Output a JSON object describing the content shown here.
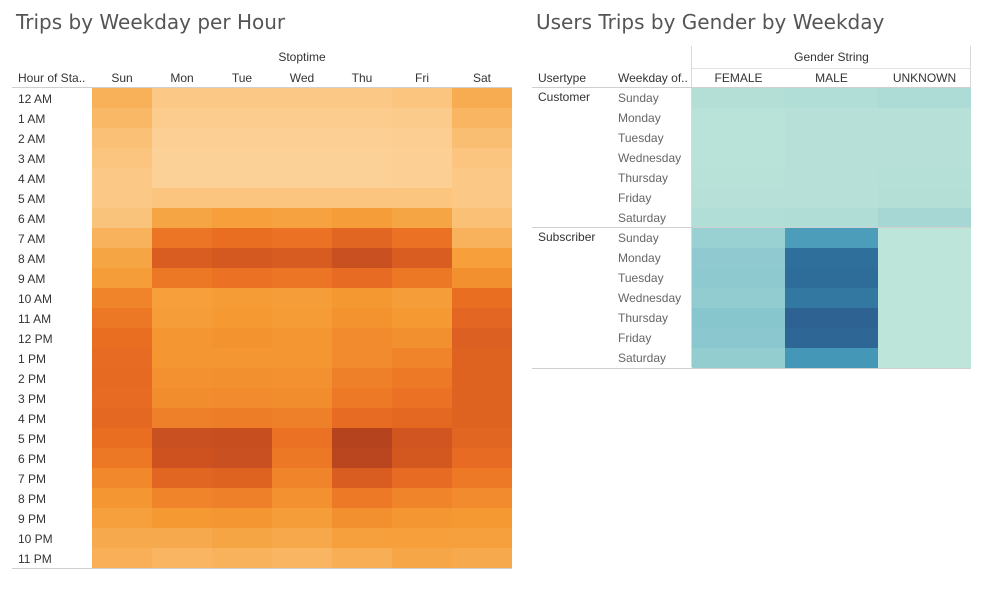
{
  "titles": {
    "left": "Trips by Weekday per Hour",
    "right": "Users Trips by Gender by Weekday"
  },
  "colors": {
    "heat_orange_low": "#fcc98c",
    "heat_orange_high": "#a53a1c",
    "heat_teal_low": "#bfe6da",
    "heat_teal_high": "#2e5a8c"
  },
  "chart_data": [
    {
      "type": "heatmap",
      "title": "Trips by Weekday per Hour",
      "column_group_label": "Stoptime",
      "row_header": "Hour of Sta..",
      "columns": [
        "Sun",
        "Mon",
        "Tue",
        "Wed",
        "Thu",
        "Fri",
        "Sat"
      ],
      "rows": [
        "12 AM",
        "1 AM",
        "2 AM",
        "3 AM",
        "4 AM",
        "5 AM",
        "6 AM",
        "7 AM",
        "8 AM",
        "9 AM",
        "10 AM",
        "11 AM",
        "12 PM",
        "1 PM",
        "2 PM",
        "3 PM",
        "4 PM",
        "5 PM",
        "6 PM",
        "7 PM",
        "8 PM",
        "9 PM",
        "10 PM",
        "11 PM"
      ],
      "values": [
        [
          0.25,
          0.1,
          0.1,
          0.1,
          0.1,
          0.12,
          0.28
        ],
        [
          0.2,
          0.07,
          0.07,
          0.07,
          0.07,
          0.08,
          0.22
        ],
        [
          0.15,
          0.05,
          0.05,
          0.05,
          0.05,
          0.06,
          0.16
        ],
        [
          0.12,
          0.04,
          0.04,
          0.04,
          0.04,
          0.05,
          0.12
        ],
        [
          0.1,
          0.04,
          0.04,
          0.04,
          0.04,
          0.05,
          0.1
        ],
        [
          0.1,
          0.12,
          0.12,
          0.12,
          0.12,
          0.12,
          0.1
        ],
        [
          0.13,
          0.33,
          0.37,
          0.35,
          0.38,
          0.33,
          0.15
        ],
        [
          0.24,
          0.57,
          0.6,
          0.58,
          0.66,
          0.58,
          0.24
        ],
        [
          0.33,
          0.72,
          0.75,
          0.73,
          0.82,
          0.72,
          0.37
        ],
        [
          0.38,
          0.56,
          0.58,
          0.57,
          0.62,
          0.56,
          0.45
        ],
        [
          0.5,
          0.37,
          0.39,
          0.38,
          0.41,
          0.38,
          0.6
        ],
        [
          0.56,
          0.38,
          0.4,
          0.39,
          0.43,
          0.4,
          0.65
        ],
        [
          0.6,
          0.42,
          0.43,
          0.42,
          0.47,
          0.45,
          0.7
        ],
        [
          0.62,
          0.42,
          0.42,
          0.42,
          0.47,
          0.5,
          0.68
        ],
        [
          0.63,
          0.44,
          0.45,
          0.44,
          0.52,
          0.55,
          0.68
        ],
        [
          0.62,
          0.46,
          0.47,
          0.46,
          0.55,
          0.58,
          0.68
        ],
        [
          0.64,
          0.52,
          0.53,
          0.52,
          0.62,
          0.64,
          0.68
        ],
        [
          0.6,
          0.82,
          0.83,
          0.58,
          0.92,
          0.78,
          0.66
        ],
        [
          0.56,
          0.8,
          0.82,
          0.56,
          0.9,
          0.76,
          0.62
        ],
        [
          0.48,
          0.66,
          0.68,
          0.5,
          0.72,
          0.62,
          0.55
        ],
        [
          0.42,
          0.5,
          0.52,
          0.44,
          0.55,
          0.5,
          0.47
        ],
        [
          0.36,
          0.4,
          0.42,
          0.38,
          0.45,
          0.42,
          0.4
        ],
        [
          0.3,
          0.3,
          0.33,
          0.31,
          0.36,
          0.37,
          0.36
        ],
        [
          0.26,
          0.22,
          0.24,
          0.22,
          0.27,
          0.32,
          0.3
        ]
      ]
    },
    {
      "type": "heatmap",
      "title": "Users Trips by Gender by Weekday",
      "column_group_label": "Gender String",
      "row_headers": [
        "Usertype",
        "Weekday of.."
      ],
      "columns": [
        "FEMALE",
        "MALE",
        "UNKNOWN"
      ],
      "groups": [
        {
          "name": "Customer",
          "rows": [
            "Sunday",
            "Monday",
            "Tuesday",
            "Wednesday",
            "Thursday",
            "Friday",
            "Saturday"
          ],
          "values": [
            [
              0.1,
              0.12,
              0.16
            ],
            [
              0.05,
              0.07,
              0.08
            ],
            [
              0.05,
              0.07,
              0.08
            ],
            [
              0.05,
              0.07,
              0.08
            ],
            [
              0.06,
              0.08,
              0.09
            ],
            [
              0.07,
              0.08,
              0.1
            ],
            [
              0.12,
              0.13,
              0.21
            ]
          ]
        },
        {
          "name": "Subscriber",
          "rows": [
            "Sunday",
            "Monday",
            "Tuesday",
            "Wednesday",
            "Thursday",
            "Friday",
            "Saturday"
          ],
          "values": [
            [
              0.26,
              0.55,
              0.02
            ],
            [
              0.3,
              0.8,
              0.02
            ],
            [
              0.31,
              0.82,
              0.02
            ],
            [
              0.29,
              0.75,
              0.02
            ],
            [
              0.33,
              0.92,
              0.02
            ],
            [
              0.32,
              0.88,
              0.02
            ],
            [
              0.28,
              0.58,
              0.02
            ]
          ]
        }
      ]
    }
  ]
}
